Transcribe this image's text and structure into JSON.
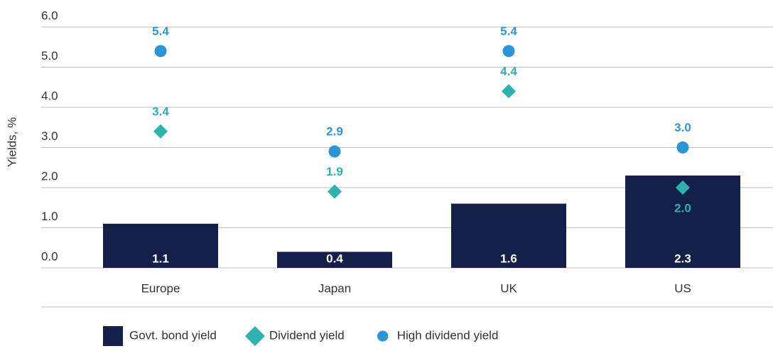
{
  "chart_data": {
    "type": "bar",
    "y_label": "Yields, %",
    "categories": [
      "Europe",
      "Japan",
      "UK",
      "US"
    ],
    "series": [
      {
        "name": "Govt. bond yield",
        "type": "bar",
        "color": "#141f4a",
        "values": [
          1.1,
          0.4,
          1.6,
          2.3
        ],
        "value_labels": [
          "1.1",
          "0.4",
          "1.6",
          "2.3"
        ]
      },
      {
        "name": "Dividend yield",
        "type": "scatter",
        "marker": "diamond",
        "color": "#2db3ae",
        "values": [
          3.4,
          1.9,
          4.4,
          2.0
        ],
        "value_labels": [
          "3.4",
          "1.9",
          "4.4",
          "2.0"
        ]
      },
      {
        "name": "High dividend yield",
        "type": "scatter",
        "marker": "circle",
        "color": "#2b96d6",
        "values": [
          5.4,
          2.9,
          5.4,
          3.0
        ],
        "value_labels": [
          "5.4",
          "2.9",
          "5.4",
          "3.0"
        ]
      }
    ],
    "ylim": [
      0,
      6
    ],
    "yticks": [
      {
        "value": 0,
        "label": "0.0"
      },
      {
        "value": 1,
        "label": "1.0"
      },
      {
        "value": 2,
        "label": "2.0"
      },
      {
        "value": 3,
        "label": "3.0"
      },
      {
        "value": 4,
        "label": "4.0"
      },
      {
        "value": 5,
        "label": "5.0"
      },
      {
        "value": 6,
        "label": "6.0"
      }
    ],
    "grid": true,
    "legend": "bottom"
  }
}
